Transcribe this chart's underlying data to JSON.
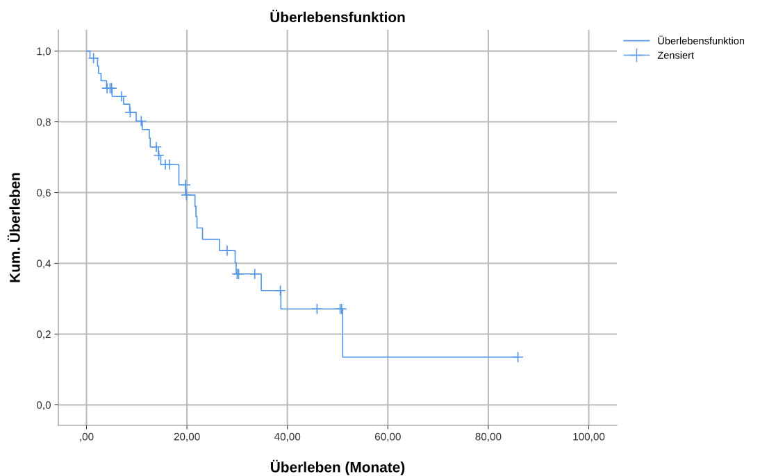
{
  "chart_data": {
    "type": "step",
    "title": "Überlebensfunktion",
    "xlabel": "Überleben (Monate)",
    "ylabel": "Kum. Überleben",
    "xlim": [
      -5.6,
      105.6
    ],
    "ylim": [
      -0.058,
      1.06
    ],
    "xticks": [
      {
        "value": 0,
        "label": ",00"
      },
      {
        "value": 20,
        "label": "20,00"
      },
      {
        "value": 40,
        "label": "40,00"
      },
      {
        "value": 60,
        "label": "60,00"
      },
      {
        "value": 80,
        "label": "80,00"
      },
      {
        "value": 100,
        "label": "100,00"
      }
    ],
    "yticks": [
      {
        "value": 0,
        "label": "0,0"
      },
      {
        "value": 0.2,
        "label": "0,2"
      },
      {
        "value": 0.4,
        "label": "0,4"
      },
      {
        "value": 0.6,
        "label": "0,6"
      },
      {
        "value": 0.8,
        "label": "0,8"
      },
      {
        "value": 1.0,
        "label": "1,0"
      }
    ],
    "grid": true,
    "legend": "top right",
    "series": [
      {
        "name": "Überlebensfunktion",
        "color": "#5596e6",
        "marker": "none",
        "x": [
          0,
          0.7,
          2.2,
          2.4,
          2.9,
          4.0,
          5.1,
          7.4,
          8.6,
          9.9,
          11.1,
          12.5,
          12.7,
          14.3,
          14.8,
          18.4,
          19.7,
          21.6,
          21.8,
          22.0,
          23.1,
          26.5,
          29.6,
          29.8,
          34.8,
          38.7,
          51.0,
          85.9
        ],
        "values": [
          1.0,
          0.98,
          0.958,
          0.937,
          0.916,
          0.895,
          0.872,
          0.85,
          0.827,
          0.802,
          0.778,
          0.754,
          0.729,
          0.705,
          0.679,
          0.622,
          0.593,
          0.561,
          0.532,
          0.5,
          0.468,
          0.436,
          0.402,
          0.37,
          0.323,
          0.271,
          0.135,
          0.135
        ]
      },
      {
        "name": "Zensiert",
        "type": "scatter",
        "color": "#5596e6",
        "marker": "cross",
        "x": [
          1.4,
          4.1,
          4.7,
          5.0,
          7.0,
          8.7,
          10.9,
          13.9,
          14.4,
          15.7,
          16.5,
          19.7,
          19.9,
          28.0,
          30.0,
          30.3,
          33.5,
          38.6,
          45.9,
          50.5,
          50.8,
          85.9
        ],
        "values": [
          0.98,
          0.895,
          0.895,
          0.895,
          0.872,
          0.827,
          0.802,
          0.729,
          0.705,
          0.679,
          0.679,
          0.622,
          0.593,
          0.436,
          0.37,
          0.37,
          0.37,
          0.323,
          0.271,
          0.271,
          0.271,
          0.135
        ]
      }
    ]
  }
}
